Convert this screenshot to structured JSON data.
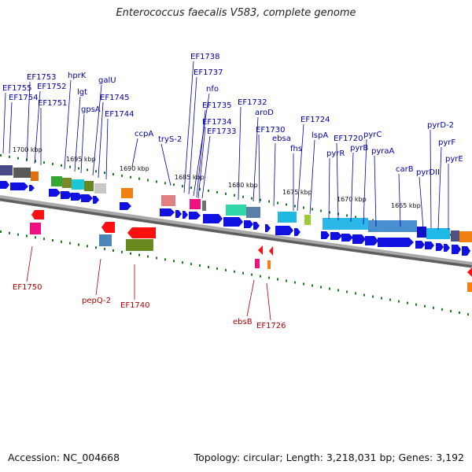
{
  "title": "Enterococcus faecalis V583, complete genome",
  "footer": {
    "accession": "Accession: NC_004668",
    "summary": "Topology: circular; Length: 3,218,031 bp; Genes: 3,192"
  },
  "colors": {
    "forward_label": "#0000a8",
    "reverse_label": "#b00000",
    "forward_arrow": "#1010e0",
    "tick": "#1e7a1e",
    "backbone": "#8a8a8a"
  },
  "kbp_markers": [
    {
      "label": "1700 kbp"
    },
    {
      "label": "1695 kbp"
    },
    {
      "label": "1690 kbp"
    },
    {
      "label": "1685 kbp"
    },
    {
      "label": "1680 kbp"
    },
    {
      "label": "1675 kbp"
    },
    {
      "label": "1670 kbp"
    },
    {
      "label": "1665 kbp"
    }
  ],
  "forward_labels": [
    "EF1755",
    "EF1754",
    "EF1753",
    "EF1752",
    "EF1751",
    "hprK",
    "lgt",
    "gpsA",
    "galU",
    "EF1745",
    "EF1744",
    "ccpA",
    "tryS-2",
    "EF1738",
    "EF1737",
    "nfo",
    "EF1735",
    "EF1734",
    "EF1733",
    "EF1732",
    "aroD",
    "EF1730",
    "ebsa",
    "fhs",
    "EF1724",
    "lspA",
    "pyrR",
    "EF1720",
    "pyrB",
    "pyrC",
    "pyraA",
    "carB",
    "pyrDII",
    "pyrD-2",
    "pyrF",
    "pyrE"
  ],
  "reverse_labels": [
    "EF1750",
    "pepQ-2",
    "EF1740",
    "ebsB",
    "EF1726"
  ]
}
